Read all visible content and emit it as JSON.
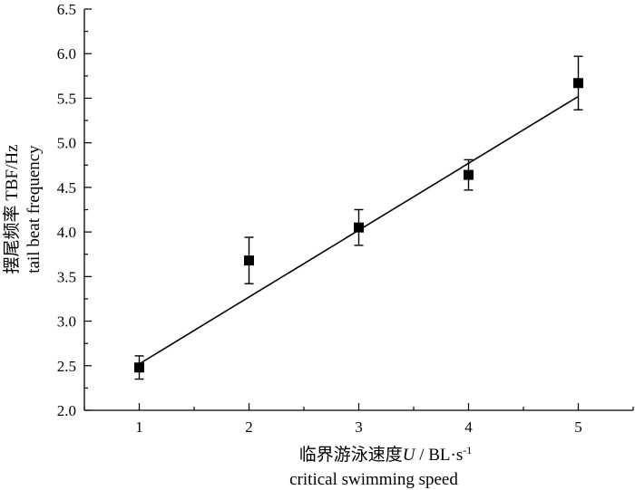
{
  "chart_data": {
    "type": "scatter",
    "xlabel": {
      "line1_cn": "临界游泳速度",
      "line1_var": "U",
      "line1_unit": " / BL·s",
      "line1_sup": "-1",
      "line2": "critical swimming speed"
    },
    "ylabel": {
      "line1": "摆尾频率 TBF/Hz",
      "line2": "tail beat frequency"
    },
    "xlim": [
      0.5,
      5.5
    ],
    "ylim": [
      2.0,
      6.5
    ],
    "xticks": [
      "1",
      "2",
      "3",
      "4",
      "5"
    ],
    "yticks": [
      "2.0",
      "2.5",
      "3.0",
      "3.5",
      "4.0",
      "4.5",
      "5.0",
      "5.5",
      "6.0",
      "6.5"
    ],
    "grid": false,
    "legend": "none",
    "series": [
      {
        "points": [
          {
            "x": 1,
            "y": 2.48,
            "err": 0.13
          },
          {
            "x": 2,
            "y": 3.68,
            "err": 0.26
          },
          {
            "x": 3,
            "y": 4.05,
            "err": 0.2
          },
          {
            "x": 4,
            "y": 4.64,
            "err": 0.17
          },
          {
            "x": 5,
            "y": 5.67,
            "err": 0.3
          }
        ],
        "marker": "square",
        "color": "#000000"
      }
    ],
    "fit_line": {
      "x": [
        1,
        5
      ],
      "y": [
        2.52,
        5.52
      ],
      "color": "#000000"
    }
  }
}
